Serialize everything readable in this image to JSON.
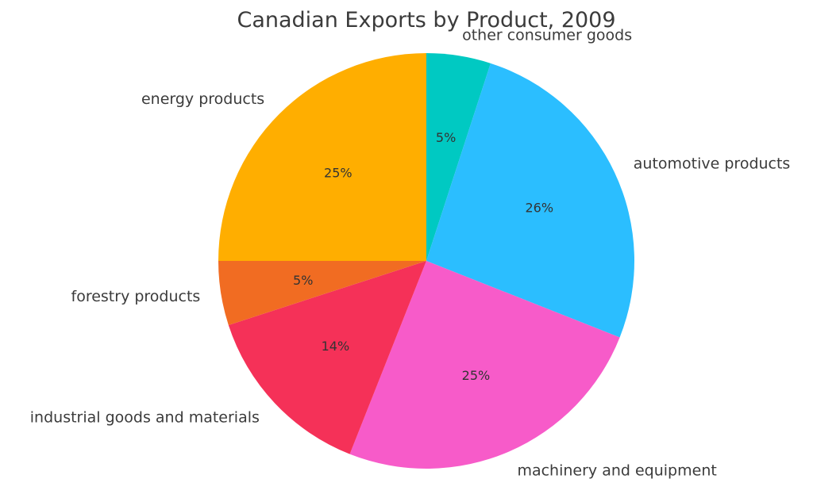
{
  "chart_data": {
    "type": "pie",
    "title": "Canadian Exports by Product, 2009",
    "start_angle_deg": 90,
    "direction": "clockwise",
    "slices": [
      {
        "label": "other consumer goods",
        "value": 5,
        "pct_label": "5%",
        "color": "#00C9C2"
      },
      {
        "label": "automotive products",
        "value": 26,
        "pct_label": "26%",
        "color": "#2BBEFF"
      },
      {
        "label": "machinery and equipment",
        "value": 25,
        "pct_label": "25%",
        "color": "#F75BC9"
      },
      {
        "label": "industrial goods and materials",
        "value": 14,
        "pct_label": "14%",
        "color": "#F53158"
      },
      {
        "label": "forestry products",
        "value": 5,
        "pct_label": "5%",
        "color": "#F16C22"
      },
      {
        "label": "energy products",
        "value": 25,
        "pct_label": "25%",
        "color": "#FFAE00"
      }
    ]
  }
}
